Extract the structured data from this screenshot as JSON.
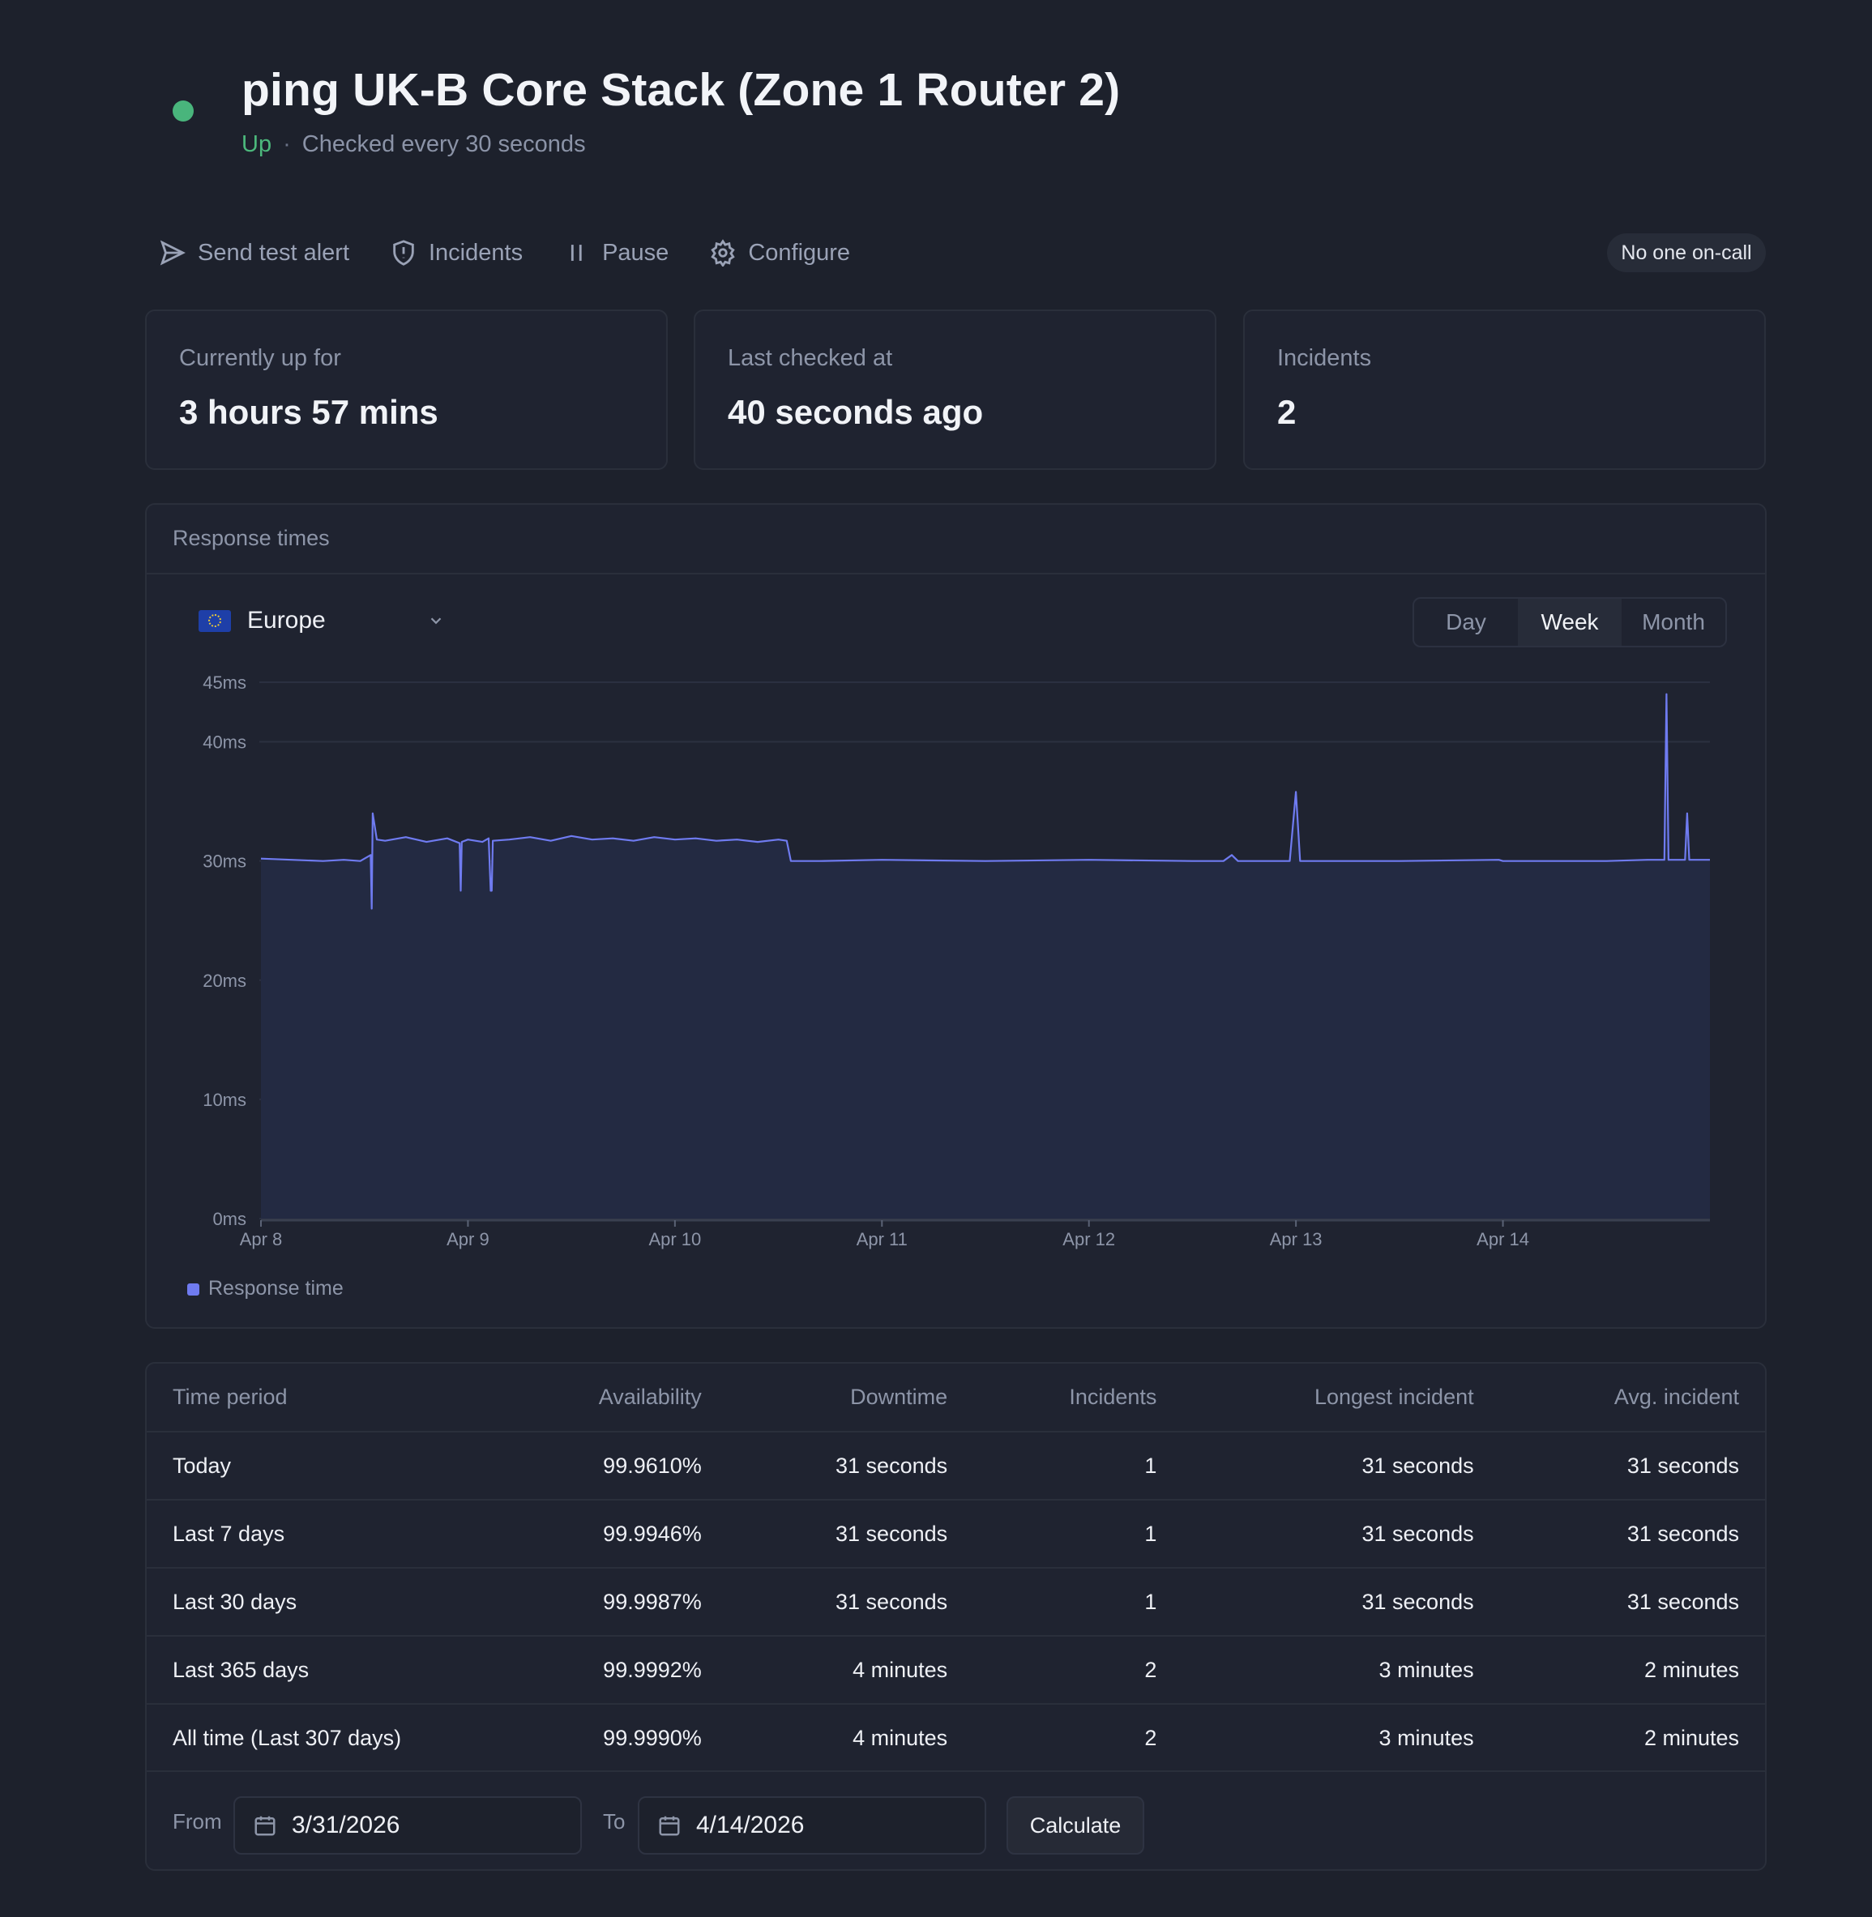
{
  "monitor": {
    "title": "ping UK-B Core Stack (Zone 1 Router 2)",
    "status": "Up",
    "separator": "·",
    "check_interval": "Checked every 30 seconds",
    "status_color": "#49b57c"
  },
  "actions": {
    "send_test_alert": "Send test alert",
    "incidents": "Incidents",
    "pause": "Pause",
    "configure": "Configure",
    "oncall": "No one on-call"
  },
  "stats": [
    {
      "label": "Currently up for",
      "value": "3 hours 57 mins"
    },
    {
      "label": "Last checked at",
      "value": "40 seconds ago"
    },
    {
      "label": "Incidents",
      "value": "2"
    }
  ],
  "response_card": {
    "title": "Response times",
    "region": "Europe",
    "range_tabs": [
      "Day",
      "Week",
      "Month"
    ],
    "active_tab": "Week",
    "legend": "Response time"
  },
  "chart_data": {
    "type": "area",
    "series": [
      {
        "name": "Response time",
        "color": "#6f7bf0"
      }
    ],
    "y_ticks": [
      "0ms",
      "10ms",
      "20ms",
      "30ms",
      "40ms",
      "45ms"
    ],
    "ylim": [
      0,
      45
    ],
    "x_ticks": [
      "Apr 8",
      "Apr 9",
      "Apr 10",
      "Apr 11",
      "Apr 12",
      "Apr 13",
      "Apr 14"
    ],
    "xlim_days": [
      8.0,
      15.0
    ],
    "x_days": [
      8.0,
      8.3,
      8.4,
      8.48,
      8.53,
      8.535,
      8.54,
      8.56,
      8.6,
      8.7,
      8.8,
      8.9,
      8.96,
      8.965,
      8.97,
      9.0,
      9.07,
      9.1,
      9.11,
      9.115,
      9.12,
      9.2,
      9.3,
      9.4,
      9.5,
      9.6,
      9.7,
      9.8,
      9.9,
      10.0,
      10.1,
      10.2,
      10.3,
      10.4,
      10.5,
      10.54,
      10.56,
      10.7,
      11.0,
      11.5,
      12.0,
      12.5,
      12.65,
      12.69,
      12.72,
      12.97,
      13.0,
      13.02,
      13.5,
      13.98,
      14.0,
      14.5,
      14.7,
      14.78,
      14.79,
      14.8,
      14.88,
      14.89,
      14.9,
      15.0
    ],
    "y_ms": [
      30.2,
      30.0,
      30.1,
      30.0,
      30.5,
      26.0,
      34.0,
      31.8,
      31.7,
      32.0,
      31.6,
      31.9,
      31.5,
      27.5,
      31.6,
      31.8,
      31.6,
      31.9,
      27.5,
      27.5,
      31.7,
      31.8,
      32.0,
      31.7,
      32.1,
      31.8,
      31.9,
      31.7,
      32.0,
      31.8,
      31.9,
      31.7,
      31.8,
      31.6,
      31.8,
      31.7,
      30.0,
      30.0,
      30.1,
      30.0,
      30.1,
      30.0,
      30.0,
      30.5,
      30.0,
      30.0,
      35.8,
      30.0,
      30.0,
      30.1,
      30.0,
      30.0,
      30.1,
      30.1,
      44.0,
      30.1,
      30.1,
      34.0,
      30.1,
      30.1
    ]
  },
  "availability_table": {
    "columns": [
      "Time period",
      "Availability",
      "Downtime",
      "Incidents",
      "Longest incident",
      "Avg. incident"
    ],
    "rows": [
      [
        "Today",
        "99.9610%",
        "31 seconds",
        "1",
        "31 seconds",
        "31 seconds"
      ],
      [
        "Last 7 days",
        "99.9946%",
        "31 seconds",
        "1",
        "31 seconds",
        "31 seconds"
      ],
      [
        "Last 30 days",
        "99.9987%",
        "31 seconds",
        "1",
        "31 seconds",
        "31 seconds"
      ],
      [
        "Last 365 days",
        "99.9992%",
        "4 minutes",
        "2",
        "3 minutes",
        "2 minutes"
      ],
      [
        "All time (Last 307 days)",
        "99.9990%",
        "4 minutes",
        "2",
        "3 minutes",
        "2 minutes"
      ]
    ]
  },
  "date_range": {
    "from_label": "From",
    "from_value": "3/31/2026",
    "to_label": "To",
    "to_value": "4/14/2026",
    "calculate": "Calculate"
  }
}
